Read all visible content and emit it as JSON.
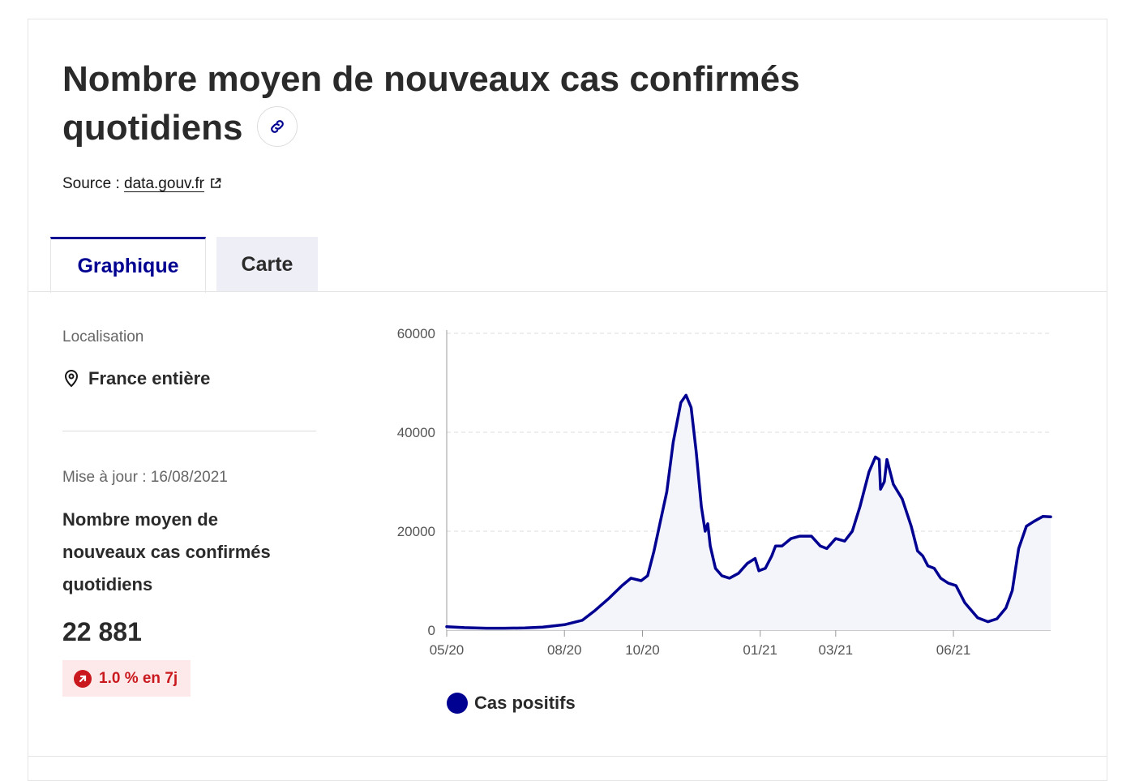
{
  "header": {
    "title": "Nombre moyen de nouveaux cas confirmés quotidiens",
    "source_prefix": "Source : ",
    "source_link": "data.gouv.fr"
  },
  "tabs": [
    {
      "label": "Graphique",
      "active": true
    },
    {
      "label": "Carte",
      "active": false
    }
  ],
  "sidebar": {
    "location_label": "Localisation",
    "location_value": "France entière",
    "updated": "Mise à jour : 16/08/2021",
    "kpi_label": "Nombre moyen de nouveaux cas confirmés quotidiens",
    "kpi_value": "22 881",
    "trend": "1.0 % en 7j"
  },
  "colors": {
    "accent": "#000091",
    "danger": "#c9191e",
    "area_fill": "#f4f4fb"
  },
  "icons": [
    "link-icon",
    "external-link-icon",
    "map-pin-icon",
    "arrow-up-right-icon"
  ],
  "chart_data": {
    "type": "area",
    "xlabel": "",
    "ylabel": "",
    "ylim": [
      0,
      60000
    ],
    "y_ticks": [
      0,
      20000,
      40000,
      60000
    ],
    "x_ticks": [
      "05/20",
      "08/20",
      "10/20",
      "01/21",
      "03/21",
      "06/21"
    ],
    "x_tick_dates": [
      "2020-05-01",
      "2020-08-01",
      "2020-10-01",
      "2021-01-01",
      "2021-03-01",
      "2021-06-01"
    ],
    "xlim": [
      "2020-05-01",
      "2021-08-16"
    ],
    "grid": true,
    "legend": "bottom-left",
    "series": [
      {
        "name": "Cas positifs",
        "color": "#000091",
        "points": [
          [
            "2020-05-01",
            700
          ],
          [
            "2020-05-15",
            500
          ],
          [
            "2020-06-01",
            400
          ],
          [
            "2020-06-15",
            400
          ],
          [
            "2020-07-01",
            450
          ],
          [
            "2020-07-15",
            600
          ],
          [
            "2020-08-01",
            1100
          ],
          [
            "2020-08-15",
            2000
          ],
          [
            "2020-08-25",
            4000
          ],
          [
            "2020-09-05",
            6500
          ],
          [
            "2020-09-15",
            9000
          ],
          [
            "2020-09-22",
            10500
          ],
          [
            "2020-09-30",
            10000
          ],
          [
            "2020-10-05",
            11000
          ],
          [
            "2020-10-10",
            16000
          ],
          [
            "2020-10-15",
            22000
          ],
          [
            "2020-10-20",
            28000
          ],
          [
            "2020-10-25",
            38000
          ],
          [
            "2020-10-31",
            46000
          ],
          [
            "2020-11-04",
            47500
          ],
          [
            "2020-11-08",
            45000
          ],
          [
            "2020-11-12",
            36000
          ],
          [
            "2020-11-16",
            25000
          ],
          [
            "2020-11-19",
            20000
          ],
          [
            "2020-11-21",
            21500
          ],
          [
            "2020-11-23",
            17000
          ],
          [
            "2020-11-27",
            12500
          ],
          [
            "2020-12-02",
            11000
          ],
          [
            "2020-12-08",
            10500
          ],
          [
            "2020-12-15",
            11500
          ],
          [
            "2020-12-22",
            13500
          ],
          [
            "2020-12-28",
            14500
          ],
          [
            "2020-12-31",
            12000
          ],
          [
            "2021-01-05",
            12500
          ],
          [
            "2021-01-10",
            15000
          ],
          [
            "2021-01-13",
            17000
          ],
          [
            "2021-01-18",
            17000
          ],
          [
            "2021-01-25",
            18500
          ],
          [
            "2021-02-01",
            19000
          ],
          [
            "2021-02-10",
            19000
          ],
          [
            "2021-02-17",
            17000
          ],
          [
            "2021-02-22",
            16500
          ],
          [
            "2021-03-01",
            18500
          ],
          [
            "2021-03-08",
            18000
          ],
          [
            "2021-03-14",
            20000
          ],
          [
            "2021-03-20",
            25000
          ],
          [
            "2021-03-27",
            32000
          ],
          [
            "2021-04-01",
            35000
          ],
          [
            "2021-04-04",
            34500
          ],
          [
            "2021-04-05",
            28500
          ],
          [
            "2021-04-08",
            30000
          ],
          [
            "2021-04-10",
            34500
          ],
          [
            "2021-04-15",
            29500
          ],
          [
            "2021-04-22",
            26500
          ],
          [
            "2021-04-29",
            21000
          ],
          [
            "2021-05-04",
            16000
          ],
          [
            "2021-05-08",
            15000
          ],
          [
            "2021-05-12",
            13000
          ],
          [
            "2021-05-17",
            12500
          ],
          [
            "2021-05-22",
            10500
          ],
          [
            "2021-05-28",
            9500
          ],
          [
            "2021-06-03",
            9000
          ],
          [
            "2021-06-10",
            5500
          ],
          [
            "2021-06-20",
            2500
          ],
          [
            "2021-06-28",
            1700
          ],
          [
            "2021-07-05",
            2300
          ],
          [
            "2021-07-12",
            4500
          ],
          [
            "2021-07-17",
            8000
          ],
          [
            "2021-07-22",
            16500
          ],
          [
            "2021-07-28",
            21000
          ],
          [
            "2021-08-03",
            22000
          ],
          [
            "2021-08-10",
            23000
          ],
          [
            "2021-08-16",
            22900
          ]
        ]
      }
    ]
  }
}
